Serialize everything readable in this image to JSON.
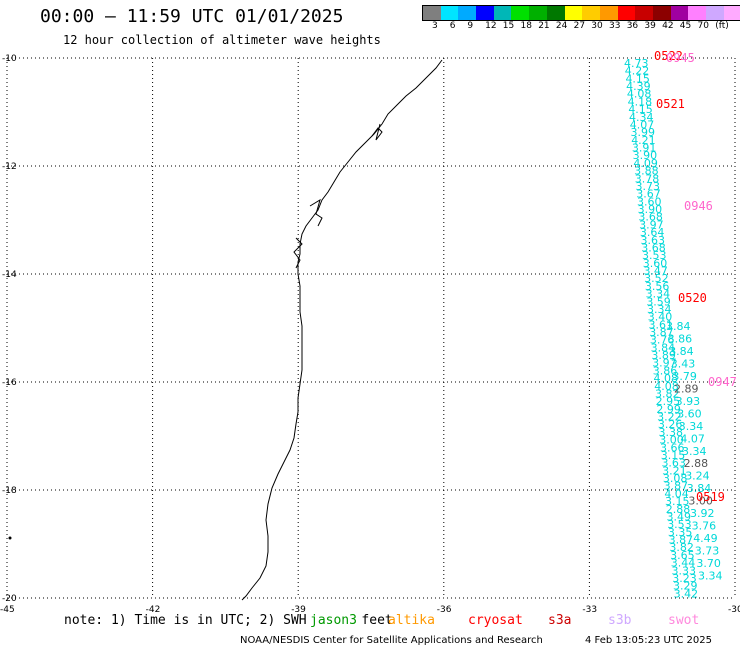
{
  "header": {
    "title": "00:00 – 11:59 UTC 01/01/2025",
    "subtitle": "12 hour collection of altimeter wave heights"
  },
  "colorbar": {
    "colors": [
      "#7f7f7f",
      "#00e5ff",
      "#00aaff",
      "#0000ff",
      "#00b7b7",
      "#00e000",
      "#00b000",
      "#007800",
      "#ffff00",
      "#ffcc00",
      "#ff9900",
      "#ff0000",
      "#c80000",
      "#8c0000",
      "#a000a0",
      "#ff80ff",
      "#cfa8ff",
      "#ffaaff",
      "#000000"
    ],
    "labels": [
      "3",
      "6",
      "9",
      "12",
      "15",
      "18",
      "21",
      "24",
      "27",
      "30",
      "33",
      "36",
      "39",
      "42",
      "45",
      "70",
      "(ft)"
    ]
  },
  "map": {
    "lat_ticks": [
      "-10",
      "-12",
      "-14",
      "-16",
      "-18",
      "-20"
    ],
    "lon_ticks": [
      "-45",
      "-42",
      "-39",
      "-36",
      "-33",
      "-30"
    ],
    "lat_range": [
      -20,
      -10
    ],
    "lon_range": [
      -45,
      -30
    ],
    "grid": "dotted",
    "coastline_color": "#000000"
  },
  "passes": [
    {
      "label": "0522",
      "color": "#ff0000"
    },
    {
      "label": "0945",
      "color": "#ff66cc"
    },
    {
      "label": "0521",
      "color": "#ff0000"
    },
    {
      "label": "0946",
      "color": "#ff66cc"
    },
    {
      "label": "0520",
      "color": "#ff0000"
    },
    {
      "label": "0947",
      "color": "#ff66cc"
    },
    {
      "label": "0519",
      "color": "#ff0000"
    }
  ],
  "readings": {
    "track_a": [
      "4.73",
      "4.22",
      "4.15",
      "4.39",
      "4.08",
      "4.18",
      "4.15",
      "4.34",
      "4.07",
      "3.99",
      "4.21",
      "3.91",
      "3.90",
      "4.09",
      "3.88",
      "3.78",
      "3.73",
      "3.67",
      "3.60",
      "3.90",
      "3.68",
      "3.97",
      "3.64",
      "3.63",
      "3.68",
      "3.53",
      "3.60",
      "3.47",
      "3.52",
      "3.56",
      "3.34",
      "3.59",
      "3.34",
      "3.40",
      "3.61",
      "3.87",
      "3.76",
      "3.84",
      "3.89",
      "3.97",
      "3.86",
      "4.08",
      "4.08",
      "3.82",
      "2.95",
      "2.99",
      "3.22",
      "3.26",
      "3.38",
      "3.00",
      "3.66",
      "3.15",
      "3.63",
      "3.21",
      "3.08",
      "3.87",
      "4.04",
      "3.15",
      "2.88",
      "3.49",
      "3.53",
      "3.35",
      "3.87",
      "3.82",
      "3.65",
      "3.44",
      "3.33",
      "3.23",
      "3.29",
      "3.42"
    ],
    "track_b": [
      "3.84",
      "3.86",
      "3.84",
      "3.43",
      "3.79",
      "2.89",
      "3.93",
      "3.60",
      "3.34",
      "4.07",
      "3.34",
      "2.88",
      "3.24",
      "3.84",
      "3.00",
      "3.92",
      "3.76",
      "4.49",
      "3.73",
      "3.70",
      "3.34"
    ],
    "track_b_colors": [
      "#00d8d8",
      "#00d8d8",
      "#00d8d8",
      "#00d8d8",
      "#00d8d8",
      "#555555",
      "#00d8d8",
      "#00d8d8",
      "#00d8d8",
      "#00d8d8",
      "#00d8d8",
      "#555555",
      "#00d8d8",
      "#00d8d8",
      "#555555",
      "#00d8d8",
      "#00d8d8",
      "#00d8d8",
      "#00d8d8",
      "#00d8d8",
      "#00d8d8"
    ]
  },
  "footer": {
    "note": "note: 1) Time is in UTC; 2) SWH is in feet",
    "satellites": [
      {
        "name": "jason3",
        "color": "#009900"
      },
      {
        "name": "altika",
        "color": "#ff9900"
      },
      {
        "name": "cryosat",
        "color": "#ff0000"
      },
      {
        "name": "s3a",
        "color": "#cc0000"
      },
      {
        "name": "s3b",
        "color": "#cfa8ff"
      },
      {
        "name": "swot",
        "color": "#ff88dd"
      }
    ],
    "credit": "NOAA/NESDIS Center for Satellite Applications and Research",
    "timestamp": "4 Feb 13:05:23 UTC 2025"
  }
}
